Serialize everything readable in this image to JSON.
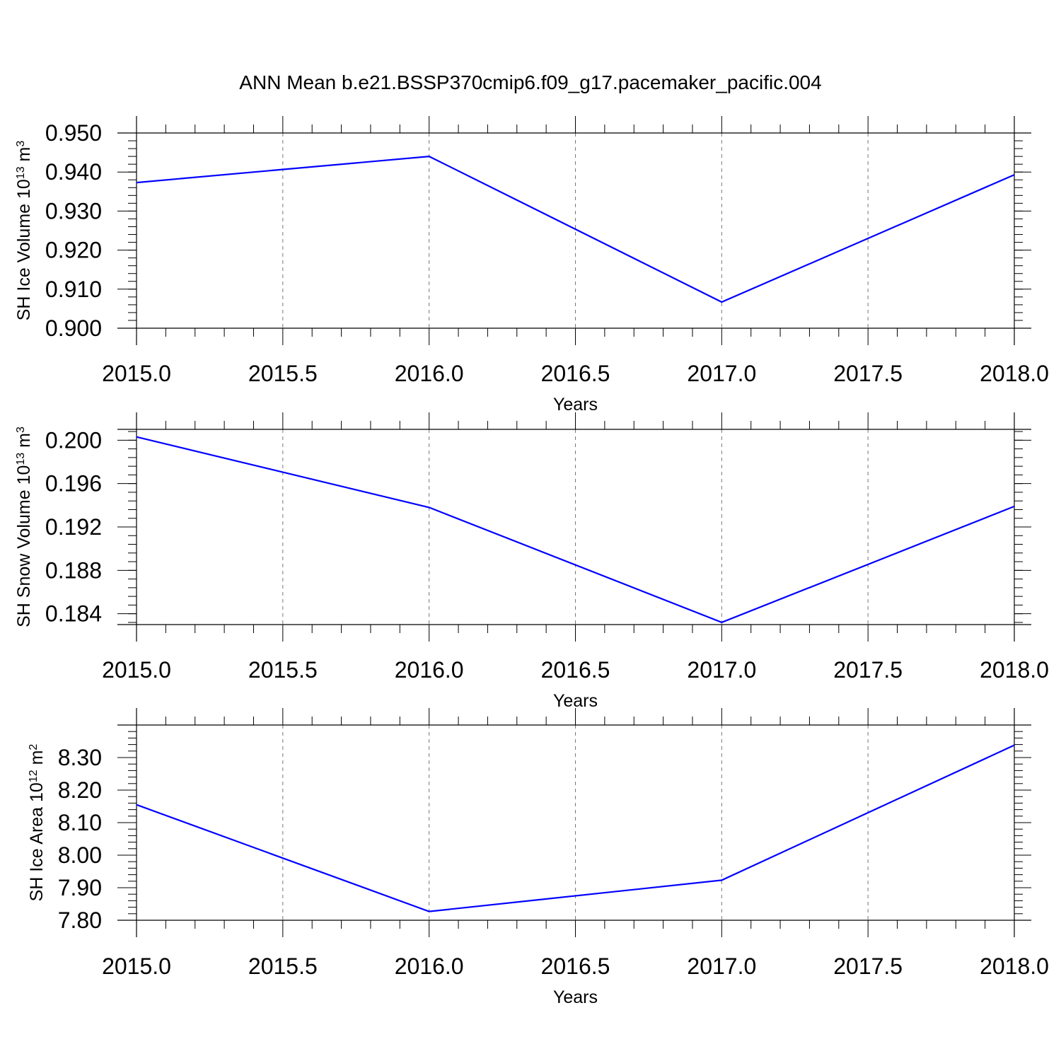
{
  "title": "ANN Mean b.e21.BSSP370cmip6.f09_g17.pacemaker_pacific.004",
  "colors": {
    "line": "#0000ff",
    "axes": "#000000",
    "grid": "#777777"
  },
  "chart_data": [
    {
      "type": "line",
      "xlabel": "Years",
      "ylabel": {
        "main": "SH Ice Volume 10",
        "sup1": "13",
        "unit": " m",
        "sup2": "3"
      },
      "xlim": [
        2015.0,
        2018.0
      ],
      "ylim": [
        0.9,
        0.95
      ],
      "xticks": [
        "2015.0",
        "2015.5",
        "2016.0",
        "2016.5",
        "2017.0",
        "2017.5",
        "2018.0"
      ],
      "xtick_values": [
        2015.0,
        2015.5,
        2016.0,
        2016.5,
        2017.0,
        2017.5,
        2018.0
      ],
      "yticks": [
        "0.900",
        "0.910",
        "0.920",
        "0.930",
        "0.940",
        "0.950"
      ],
      "ytick_values": [
        0.9,
        0.91,
        0.92,
        0.93,
        0.94,
        0.95
      ],
      "yminor_step": 0.002,
      "grid": "vertical dashed",
      "series": [
        {
          "x": [
            2015,
            2016,
            2017,
            2018
          ],
          "y": [
            0.9373,
            0.944,
            0.9067,
            0.9393
          ]
        }
      ]
    },
    {
      "type": "line",
      "xlabel": "Years",
      "ylabel": {
        "main": "SH Snow Volume 10",
        "sup1": "13",
        "unit": " m",
        "sup2": "3"
      },
      "xlim": [
        2015.0,
        2018.0
      ],
      "ylim": [
        0.183,
        0.201
      ],
      "xticks": [
        "2015.0",
        "2015.5",
        "2016.0",
        "2016.5",
        "2017.0",
        "2017.5",
        "2018.0"
      ],
      "xtick_values": [
        2015.0,
        2015.5,
        2016.0,
        2016.5,
        2017.0,
        2017.5,
        2018.0
      ],
      "yticks": [
        "0.184",
        "0.188",
        "0.192",
        "0.196",
        "0.200"
      ],
      "ytick_values": [
        0.184,
        0.188,
        0.192,
        0.196,
        0.2
      ],
      "yminor_step": 0.0008,
      "grid": "vertical dashed",
      "series": [
        {
          "x": [
            2015,
            2016,
            2017,
            2018
          ],
          "y": [
            0.2003,
            0.1938,
            0.1832,
            0.1939
          ]
        }
      ]
    },
    {
      "type": "line",
      "xlabel": "Years",
      "ylabel": {
        "main": "SH Ice Area 10",
        "sup1": "12",
        "unit": " m",
        "sup2": "2"
      },
      "xlim": [
        2015.0,
        2018.0
      ],
      "ylim": [
        7.8,
        8.4
      ],
      "xticks": [
        "2015.0",
        "2015.5",
        "2016.0",
        "2016.5",
        "2017.0",
        "2017.5",
        "2018.0"
      ],
      "xtick_values": [
        2015.0,
        2015.5,
        2016.0,
        2016.5,
        2017.0,
        2017.5,
        2018.0
      ],
      "yticks": [
        "7.80",
        "7.90",
        "8.00",
        "8.10",
        "8.20",
        "8.30"
      ],
      "ytick_values": [
        7.8,
        7.9,
        8.0,
        8.1,
        8.2,
        8.3
      ],
      "yminor_step": 0.02,
      "grid": "vertical dashed",
      "series": [
        {
          "x": [
            2015,
            2016,
            2017,
            2018
          ],
          "y": [
            8.155,
            7.827,
            7.923,
            8.338
          ]
        }
      ]
    }
  ]
}
